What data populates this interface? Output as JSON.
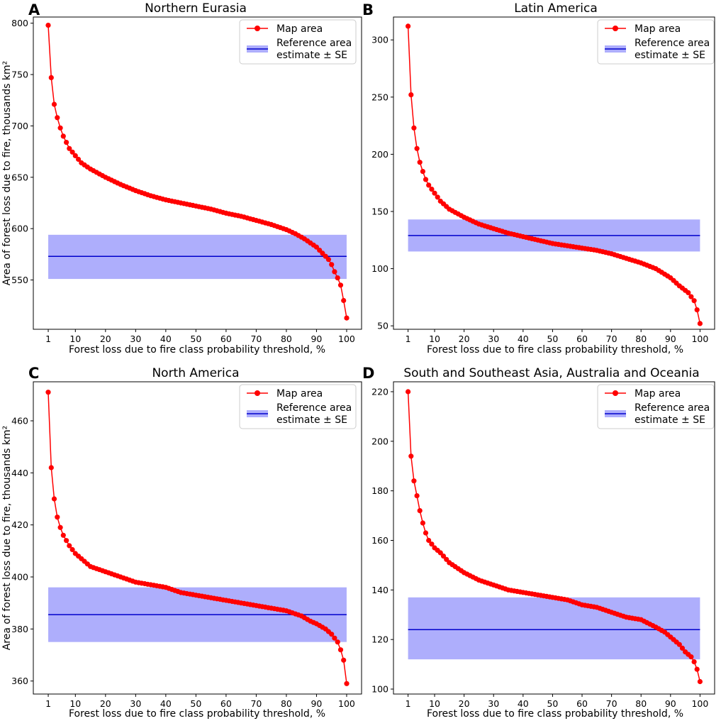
{
  "figure": {
    "ylabel": "Area of forest loss due to fire, thousands km²",
    "xlabel": "Forest loss due to fire class probability threshold, %",
    "legend": {
      "map_label": "Map area",
      "ref_label_line1": "Reference area",
      "ref_label_line2": "estimate ± SE"
    },
    "colors": {
      "map": "#ff0000",
      "ref_line": "#0000cc",
      "ref_band": "#aeaefc"
    }
  },
  "chart_data": [
    {
      "type": "line",
      "panel_letter": "A",
      "title": "Northern Eurasia",
      "ylim": [
        502,
        806
      ],
      "yticks": [
        500,
        550,
        600,
        650,
        700,
        750,
        800
      ],
      "xticks": [
        1,
        10,
        20,
        30,
        40,
        50,
        60,
        70,
        80,
        90,
        100
      ],
      "map_anchors": [
        [
          1,
          798
        ],
        [
          2,
          747
        ],
        [
          3,
          721
        ],
        [
          4,
          708
        ],
        [
          5,
          698
        ],
        [
          6,
          690
        ],
        [
          7,
          684
        ],
        [
          8,
          678
        ],
        [
          10,
          671
        ],
        [
          12,
          664
        ],
        [
          15,
          658
        ],
        [
          20,
          650
        ],
        [
          25,
          643
        ],
        [
          30,
          637
        ],
        [
          35,
          632
        ],
        [
          40,
          628
        ],
        [
          45,
          625
        ],
        [
          50,
          622
        ],
        [
          55,
          619
        ],
        [
          60,
          615
        ],
        [
          65,
          612
        ],
        [
          70,
          608
        ],
        [
          75,
          604
        ],
        [
          80,
          599
        ],
        [
          83,
          595
        ],
        [
          86,
          590
        ],
        [
          88,
          586
        ],
        [
          90,
          582
        ],
        [
          92,
          576
        ],
        [
          94,
          570
        ],
        [
          95,
          565
        ],
        [
          96,
          558
        ],
        [
          97,
          552
        ],
        [
          98,
          545
        ],
        [
          99,
          530
        ],
        [
          100,
          513
        ]
      ],
      "reference": {
        "estimate": 573,
        "low": 551,
        "high": 594,
        "x_range": [
          1,
          100
        ]
      }
    },
    {
      "type": "line",
      "panel_letter": "B",
      "title": "Latin America",
      "ylim": [
        47,
        320
      ],
      "yticks": [
        50,
        100,
        150,
        200,
        250,
        300
      ],
      "xticks": [
        1,
        10,
        20,
        30,
        40,
        50,
        60,
        70,
        80,
        90,
        100
      ],
      "map_anchors": [
        [
          1,
          312
        ],
        [
          2,
          252
        ],
        [
          3,
          223
        ],
        [
          4,
          205
        ],
        [
          5,
          193
        ],
        [
          6,
          185
        ],
        [
          7,
          178
        ],
        [
          8,
          173
        ],
        [
          10,
          166
        ],
        [
          12,
          159
        ],
        [
          15,
          152
        ],
        [
          20,
          145
        ],
        [
          25,
          139
        ],
        [
          30,
          135
        ],
        [
          35,
          131
        ],
        [
          40,
          128
        ],
        [
          45,
          125
        ],
        [
          50,
          122
        ],
        [
          55,
          120
        ],
        [
          60,
          118
        ],
        [
          65,
          116
        ],
        [
          70,
          113
        ],
        [
          75,
          109
        ],
        [
          80,
          105
        ],
        [
          85,
          100
        ],
        [
          90,
          92
        ],
        [
          93,
          85
        ],
        [
          96,
          79
        ],
        [
          98,
          72
        ],
        [
          99,
          64
        ],
        [
          100,
          52
        ]
      ],
      "reference": {
        "estimate": 129,
        "low": 115,
        "high": 143,
        "x_range": [
          1,
          100
        ]
      }
    },
    {
      "type": "line",
      "panel_letter": "C",
      "title": "North America",
      "ylim": [
        355,
        475
      ],
      "yticks": [
        360,
        380,
        400,
        420,
        440,
        460
      ],
      "xticks": [
        1,
        10,
        20,
        30,
        40,
        50,
        60,
        70,
        80,
        90,
        100
      ],
      "map_anchors": [
        [
          1,
          471
        ],
        [
          2,
          442
        ],
        [
          3,
          430
        ],
        [
          4,
          423
        ],
        [
          5,
          419
        ],
        [
          6,
          416
        ],
        [
          7,
          414
        ],
        [
          8,
          412
        ],
        [
          10,
          409
        ],
        [
          12,
          407
        ],
        [
          15,
          404
        ],
        [
          20,
          402
        ],
        [
          25,
          400
        ],
        [
          30,
          398
        ],
        [
          35,
          397
        ],
        [
          40,
          396
        ],
        [
          45,
          394
        ],
        [
          50,
          393
        ],
        [
          55,
          392
        ],
        [
          60,
          391
        ],
        [
          65,
          390
        ],
        [
          70,
          389
        ],
        [
          75,
          388
        ],
        [
          80,
          387
        ],
        [
          85,
          385
        ],
        [
          88,
          383
        ],
        [
          90,
          382
        ],
        [
          93,
          380
        ],
        [
          95,
          378
        ],
        [
          97,
          375
        ],
        [
          98,
          372
        ],
        [
          99,
          368
        ],
        [
          100,
          359
        ]
      ],
      "reference": {
        "estimate": 385.5,
        "low": 375,
        "high": 396,
        "x_range": [
          1,
          100
        ]
      }
    },
    {
      "type": "line",
      "panel_letter": "D",
      "title": "South and Southeast Asia, Australia and Oceania",
      "ylim": [
        98,
        224
      ],
      "yticks": [
        100,
        120,
        140,
        160,
        180,
        200,
        220
      ],
      "xticks": [
        1,
        10,
        20,
        30,
        40,
        50,
        60,
        70,
        80,
        90,
        100
      ],
      "map_anchors": [
        [
          1,
          220
        ],
        [
          2,
          194
        ],
        [
          3,
          184
        ],
        [
          4,
          178
        ],
        [
          5,
          172
        ],
        [
          6,
          167
        ],
        [
          7,
          163
        ],
        [
          8,
          160
        ],
        [
          10,
          157
        ],
        [
          12,
          155
        ],
        [
          15,
          151
        ],
        [
          20,
          147
        ],
        [
          25,
          144
        ],
        [
          30,
          142
        ],
        [
          35,
          140
        ],
        [
          40,
          139
        ],
        [
          45,
          138
        ],
        [
          50,
          137
        ],
        [
          55,
          136
        ],
        [
          60,
          134
        ],
        [
          65,
          133
        ],
        [
          70,
          131
        ],
        [
          75,
          129
        ],
        [
          80,
          128
        ],
        [
          85,
          125
        ],
        [
          88,
          123
        ],
        [
          90,
          121
        ],
        [
          93,
          118
        ],
        [
          95,
          115
        ],
        [
          97,
          113
        ],
        [
          98,
          111
        ],
        [
          99,
          108
        ],
        [
          100,
          103
        ]
      ],
      "reference": {
        "estimate": 124,
        "low": 112,
        "high": 137,
        "x_range": [
          1,
          100
        ]
      }
    }
  ]
}
